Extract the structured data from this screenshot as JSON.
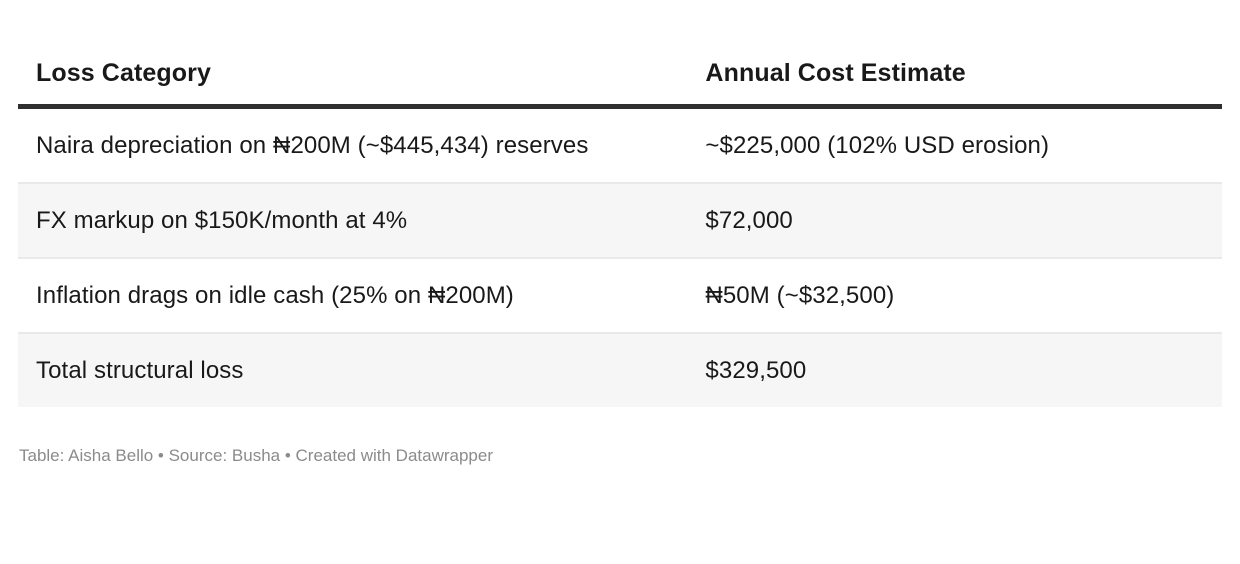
{
  "chart_data": {
    "type": "table",
    "title": "",
    "columns": [
      "Loss Category",
      "Annual Cost Estimate"
    ],
    "rows": [
      {
        "category": "Naira depreciation on ₦200M (~$445,434) reserves",
        "cost": "~$225,000 (102% USD erosion)"
      },
      {
        "category": "FX markup on $150K/month at 4%",
        "cost": "$72,000"
      },
      {
        "category": "Inflation drags on idle cash (25% on ₦200M)",
        "cost": "₦50M (~$32,500)"
      },
      {
        "category": "Total structural loss",
        "cost": "$329,500"
      }
    ],
    "layout_hints": {
      "zebra_striping": true,
      "header_rule": "thick dark rule under header",
      "row_separators": "thin light gray lines"
    }
  },
  "footer": {
    "attribution": "Table: Aisha Bello • Source: Busha • Created with Datawrapper"
  },
  "colors": {
    "background": "#ffffff",
    "text": "#191919",
    "header_rule": "#2f2f2f",
    "row_alt_background": "#f6f6f6",
    "row_separator": "#e9e9e9",
    "attribution_text": "#8b8b8b"
  }
}
